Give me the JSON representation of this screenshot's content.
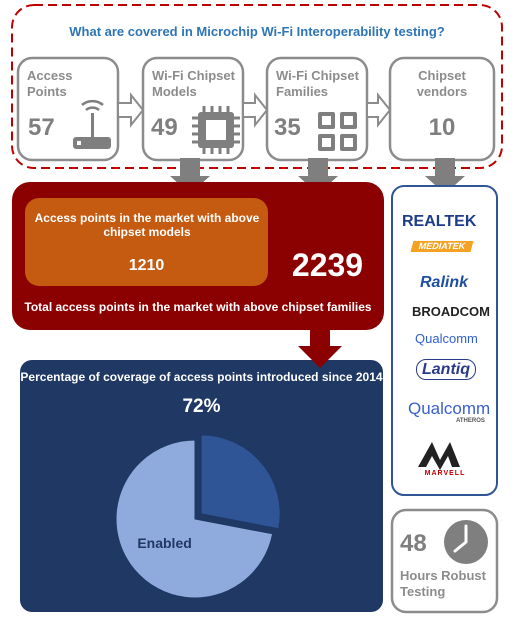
{
  "title": "What are covered in Microchip Wi-Fi Interoperability testing?",
  "boxes": [
    {
      "label": "Access Points",
      "value": 57
    },
    {
      "label": "Wi-Fi Chipset Models",
      "value": 49
    },
    {
      "label": "Wi-Fi Chipset Families",
      "value": 35
    },
    {
      "label": "Chipset vendors",
      "value": 10
    }
  ],
  "market": {
    "models_label": "Access points in the market with above chipset models",
    "models_value": 1210,
    "families_value": 2239,
    "families_label": "Total access points in the market with above chipset families"
  },
  "coverage": {
    "type": "pie",
    "title": "Percentage of coverage of access points introduced since 2014",
    "categories": [
      "Enabled",
      null
    ],
    "values": [
      72,
      28
    ],
    "value_labels": [
      "72%",
      null
    ],
    "colors": [
      "#8faadc",
      "#2f5597"
    ]
  },
  "vendors": [
    "REALTEK",
    "MEDIATEK",
    "Ralink",
    "BROADCOM",
    "Qualcomm",
    "Lantiq",
    "Qualcomm",
    "ATHEROS",
    "MARVELL"
  ],
  "testing": {
    "value": 48,
    "label": "Hours Robust Testing"
  }
}
